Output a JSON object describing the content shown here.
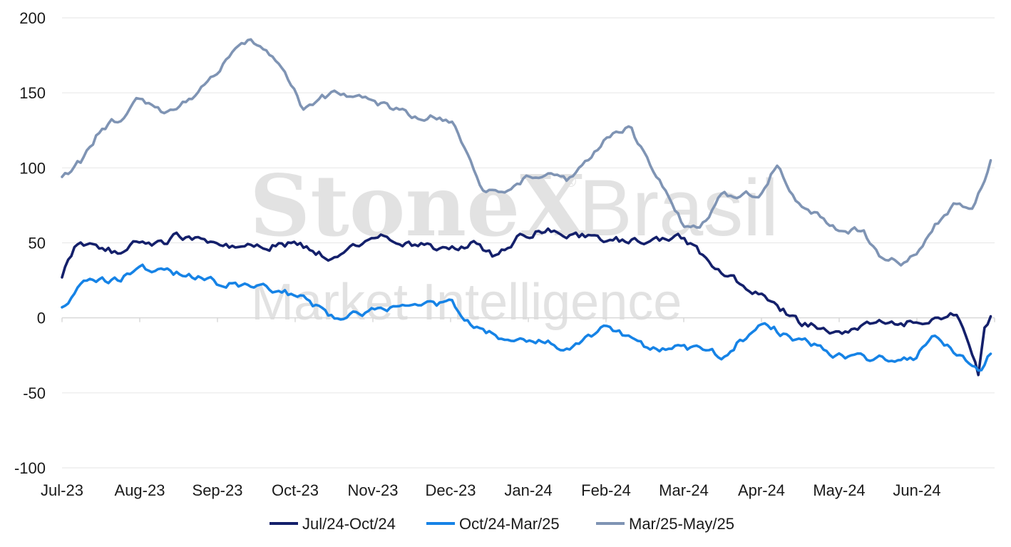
{
  "chart_data": {
    "type": "line",
    "title": "",
    "xlabel": "",
    "ylabel": "",
    "ylim": [
      -100,
      200
    ],
    "yticks": [
      -100,
      -50,
      0,
      50,
      100,
      150,
      200
    ],
    "ytick_labels": [
      "-100",
      "-50",
      "0",
      "50",
      "100",
      "150",
      "200"
    ],
    "x_tick_labels": [
      "Jul-23",
      "Aug-23",
      "Sep-23",
      "Oct-23",
      "Nov-23",
      "Dec-23",
      "Jan-24",
      "Feb-24",
      "Mar-24",
      "Apr-24",
      "May-24",
      "Jun-24"
    ],
    "grid": "horizontal",
    "legend_position": "bottom",
    "watermark": {
      "main": "StoneX",
      "reg": "®",
      "sub": "Brasil",
      "line2": "Market Intelligence"
    },
    "series": [
      {
        "name": "Jul/24-Oct/24",
        "color": "#14206b",
        "x": [
          0,
          0.15,
          0.35,
          0.55,
          0.75,
          1,
          1.3,
          1.5,
          2,
          2.5,
          3,
          3.5,
          4,
          4.5,
          5,
          5.3,
          5.6,
          5.9,
          6.2,
          6.5,
          7,
          7.5,
          8,
          8.5,
          9,
          9.5,
          10,
          10.5,
          11,
          11.5,
          11.7,
          11.8,
          11.85,
          11.95
        ],
        "values": [
          27,
          45,
          49,
          46,
          43,
          51,
          50,
          55,
          49,
          47,
          50,
          39,
          55,
          50,
          45,
          50,
          40,
          55,
          59,
          56,
          52,
          51,
          53,
          30,
          15,
          -3,
          -10,
          -3,
          -3,
          3,
          -20,
          -38,
          -8,
          1
        ]
      },
      {
        "name": "Oct/24-Mar/25",
        "color": "#1683e6",
        "x": [
          0,
          0.25,
          0.5,
          0.75,
          1,
          1.5,
          2,
          2.5,
          3,
          3.5,
          4,
          4.5,
          5,
          5.25,
          5.5,
          5.75,
          6,
          6.5,
          7,
          7.5,
          8,
          8.5,
          9,
          9.5,
          10,
          10.5,
          11,
          11.2,
          11.5,
          11.7,
          11.85,
          11.95
        ],
        "values": [
          7,
          21,
          24,
          25,
          33,
          30,
          23,
          22,
          15,
          1,
          5,
          9,
          10,
          -3,
          -10,
          -15,
          -15,
          -20,
          -5,
          -20,
          -20,
          -25,
          -4,
          -15,
          -25,
          -28,
          -27,
          -10,
          -25,
          -30,
          -35,
          -24
        ]
      },
      {
        "name": "Mar/25-May/25",
        "color": "#7f94b4",
        "x": [
          0,
          0.25,
          0.5,
          0.7,
          0.9,
          1,
          1.3,
          1.5,
          2,
          2.3,
          2.6,
          2.8,
          3,
          3.1,
          3.3,
          3.5,
          4,
          4.5,
          5,
          5.2,
          5.4,
          5.7,
          6,
          6.2,
          6.5,
          7,
          7.3,
          7.6,
          8,
          8.2,
          8.5,
          9,
          9.2,
          9.5,
          10,
          10.3,
          10.5,
          10.8,
          11,
          11.3,
          11.5,
          11.7,
          11.85,
          11.95
        ],
        "values": [
          94,
          105,
          126,
          132,
          140,
          146,
          138,
          141,
          162,
          186,
          181,
          172,
          150,
          140,
          145,
          150,
          145,
          135,
          132,
          109,
          85,
          82,
          95,
          95,
          90,
          120,
          128,
          100,
          62,
          60,
          82,
          82,
          102,
          75,
          60,
          58,
          43,
          38,
          45,
          65,
          75,
          75,
          90,
          105
        ]
      }
    ]
  }
}
